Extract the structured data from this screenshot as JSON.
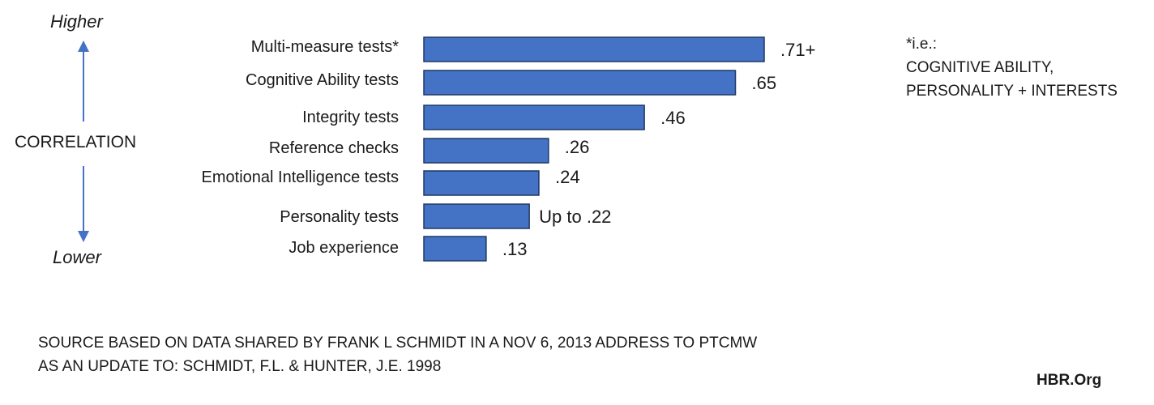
{
  "axis": {
    "top_label": "Higher",
    "middle_label": "CORRELATION",
    "bottom_label": "Lower",
    "arrow_color": "#4472C4"
  },
  "chart_data": {
    "type": "bar",
    "orientation": "horizontal",
    "categories": [
      "Multi-measure tests*",
      "Cognitive Ability tests",
      "Integrity tests",
      "Reference checks",
      "Emotional Intelligence tests",
      "Personality tests",
      "Job experience"
    ],
    "values": [
      0.71,
      0.65,
      0.46,
      0.26,
      0.24,
      0.22,
      0.13
    ],
    "value_labels": [
      ".71+",
      ".65",
      ".46",
      ".26",
      ".24",
      "Up to .22",
      ".13"
    ],
    "bar_color": "#4472C4",
    "bar_border": "#1F3864",
    "xlim": [
      0,
      0.71
    ],
    "grid": false
  },
  "note": {
    "line1": "*i.e.:",
    "line2": "COGNITIVE ABILITY,",
    "line3": "PERSONALITY + INTERESTS"
  },
  "source": {
    "line1": "SOURCE BASED ON DATA SHARED BY FRANK L SCHMIDT IN A NOV 6, 2013 ADDRESS TO PTCMW",
    "line2": "AS AN UPDATE TO: SCHMIDT, F.L. & HUNTER, J.E. 1998"
  },
  "brand": "HBR.Org"
}
